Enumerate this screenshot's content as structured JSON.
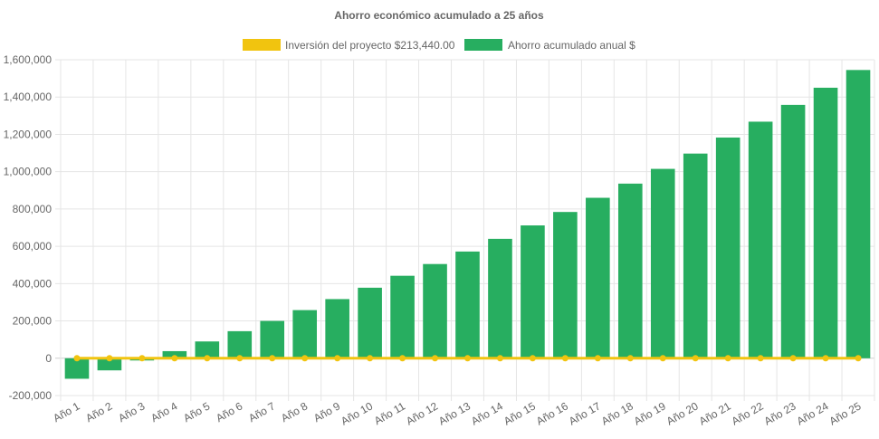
{
  "chart_data": {
    "type": "bar",
    "title": "Ahorro económico acumulado a 25 años",
    "xlabel": "",
    "ylabel": "",
    "ylim": [
      -200000,
      1600000
    ],
    "y_ticks": [
      -200000,
      0,
      200000,
      400000,
      600000,
      800000,
      1000000,
      1200000,
      1400000,
      1600000
    ],
    "y_tick_labels": [
      "-200,000",
      "0",
      "200,000",
      "400,000",
      "600,000",
      "800,000",
      "1,000,000",
      "1,200,000",
      "1,400,000",
      "1,600,000"
    ],
    "grid": true,
    "legend_position": "top",
    "categories": [
      "Año 1",
      "Año 2",
      "Año 3",
      "Año 4",
      "Año 5",
      "Año 6",
      "Año 7",
      "Año 8",
      "Año 9",
      "Año 10",
      "Año 11",
      "Año 12",
      "Año 13",
      "Año 14",
      "Año 15",
      "Año 16",
      "Año 17",
      "Año 18",
      "Año 19",
      "Año 20",
      "Año 21",
      "Año 22",
      "Año 23",
      "Año 24",
      "Año 25"
    ],
    "series": [
      {
        "name": "Inversión del proyecto $213,440.00",
        "type": "line",
        "color": "#f1c40f",
        "values": [
          0,
          0,
          0,
          0,
          0,
          0,
          0,
          0,
          0,
          0,
          0,
          0,
          0,
          0,
          0,
          0,
          0,
          0,
          0,
          0,
          0,
          0,
          0,
          0,
          0
        ]
      },
      {
        "name": "Ahorro acumulado anual $",
        "type": "bar",
        "color": "#27ae60",
        "values": [
          -110000,
          -65000,
          -12000,
          38000,
          90000,
          145000,
          200000,
          258000,
          317000,
          378000,
          442000,
          505000,
          572000,
          640000,
          712000,
          784000,
          860000,
          936000,
          1015000,
          1097000,
          1183000,
          1268000,
          1358000,
          1450000,
          1545000
        ]
      }
    ]
  }
}
